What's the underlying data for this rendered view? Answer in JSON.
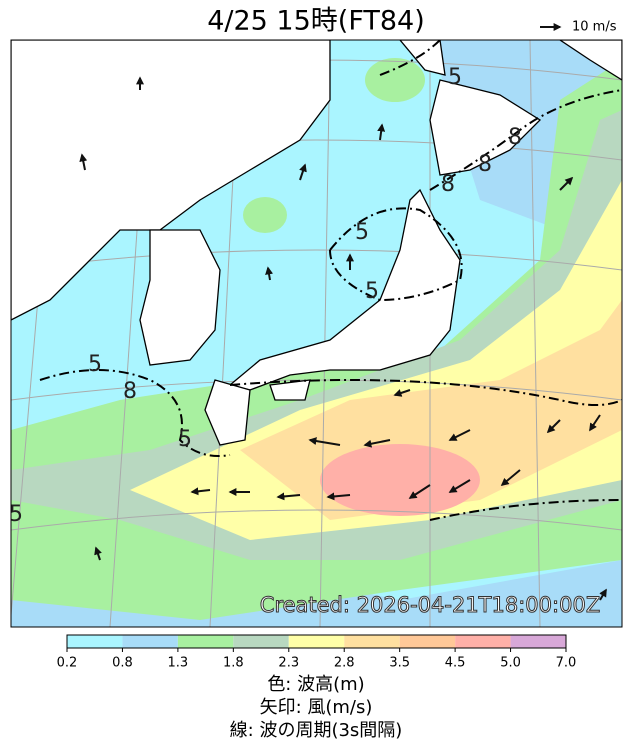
{
  "header": {
    "title": "4/25 15時(FT84)",
    "legend_arrow_label": "10 m/s"
  },
  "map": {
    "created": "Created: 2026-04-21T18:00:00Z",
    "contour_labels": [
      "5",
      "8",
      "5",
      "5",
      "5",
      "5",
      "8",
      "8",
      "8",
      "5"
    ]
  },
  "colorbar": {
    "ticks": [
      0.2,
      0.8,
      1.3,
      1.8,
      2.3,
      2.8,
      3.5,
      4.5,
      {
        "value": 5,
        "label": "5.0"
      },
      {
        "value": 7,
        "label": "7.0"
      }
    ],
    "colors": [
      "#aaf5ff",
      "#a8dcf8",
      "#a8f0a0",
      "#b8d8c0",
      "#ffffa8",
      "#ffe0a0",
      "#ffc898",
      "#ffb0a8",
      "#d8a8d8"
    ]
  },
  "caption": [
    "色: 波高(m)",
    "矢印: 風(m/s)",
    "線: 波の周期(3s間隔)"
  ]
}
